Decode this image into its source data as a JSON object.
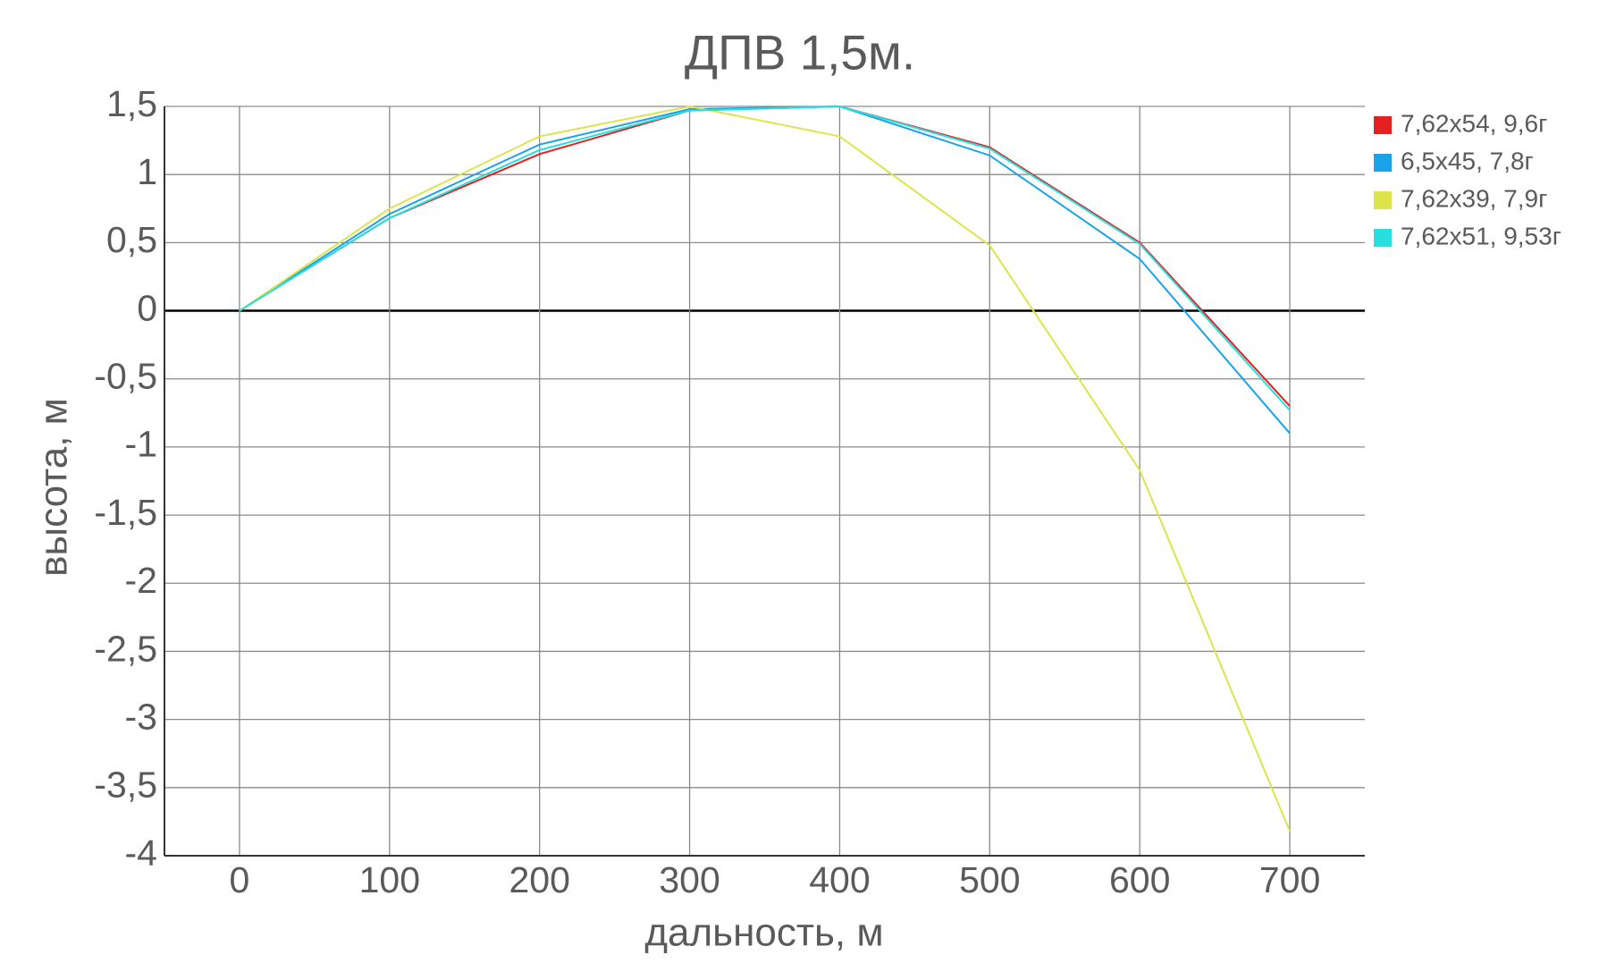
{
  "chart_data": {
    "type": "line",
    "title": "ДПВ 1,5м.",
    "x_label": "дальность, м",
    "y_label": "высота, м",
    "x": [
      0,
      100,
      200,
      300,
      400,
      500,
      600,
      700
    ],
    "xlim": [
      -50,
      750
    ],
    "xticks": [
      0,
      100,
      200,
      300,
      400,
      500,
      600,
      700
    ],
    "ylim": [
      -4,
      1.5
    ],
    "yticks": [
      {
        "value": -4,
        "label": "-4"
      },
      {
        "value": -3.5,
        "label": "-3,5"
      },
      {
        "value": -3,
        "label": "-3"
      },
      {
        "value": -2.5,
        "label": "-2,5"
      },
      {
        "value": -2,
        "label": "-2"
      },
      {
        "value": -1.5,
        "label": "-1,5"
      },
      {
        "value": -1,
        "label": "-1"
      },
      {
        "value": -0.5,
        "label": "-0,5"
      },
      0,
      {
        "value": 0.5,
        "label": "0,5"
      },
      1,
      {
        "value": 1.5,
        "label": "1,5"
      }
    ],
    "grid": true,
    "legend": "right",
    "series": [
      {
        "name": "7,62x54, 9,6г",
        "color": "#e52020",
        "values": [
          0,
          0.68,
          1.15,
          1.47,
          1.5,
          1.2,
          0.5,
          -0.7
        ]
      },
      {
        "name": "6,5x45, 7,8г",
        "color": "#1aa3e8",
        "values": [
          0,
          0.71,
          1.22,
          1.48,
          1.5,
          1.14,
          0.38,
          -0.9
        ]
      },
      {
        "name": "7,62x39, 7,9г",
        "color": "#dce44a",
        "values": [
          0,
          0.75,
          1.28,
          1.5,
          1.28,
          0.48,
          -1.17,
          -3.82
        ]
      },
      {
        "name": "7,62x51, 9,53г",
        "color": "#26e0df",
        "values": [
          0,
          0.68,
          1.18,
          1.47,
          1.5,
          1.19,
          0.49,
          -0.73
        ]
      }
    ]
  }
}
